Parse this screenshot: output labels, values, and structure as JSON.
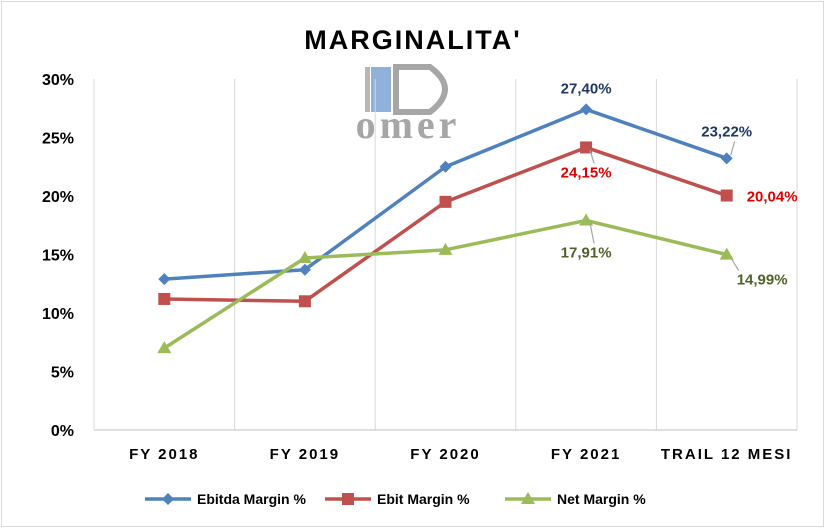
{
  "chart_data": {
    "type": "line",
    "title": "MARGINALITA'",
    "categories": [
      "FY 2018",
      "FY 2019",
      "FY 2020",
      "FY 2021",
      "TRAIL 12 MESI"
    ],
    "ylim": [
      0,
      30
    ],
    "yticks": [
      "0%",
      "5%",
      "10%",
      "15%",
      "20%",
      "25%",
      "30%"
    ],
    "grid": "vertical",
    "legend_position": "bottom",
    "watermark": {
      "text": "omer"
    },
    "series": [
      {
        "name": "Ebitda Margin %",
        "color": "#4f81bd",
        "marker": "diamond",
        "values": [
          12.9,
          13.7,
          22.5,
          27.4,
          23.22
        ],
        "labels": [
          null,
          null,
          null,
          "27,40%",
          "23,22%"
        ],
        "label_color": "#1f3864"
      },
      {
        "name": "Ebit Margin %",
        "color": "#c0504d",
        "marker": "square",
        "values": [
          11.2,
          11.0,
          19.5,
          24.15,
          20.04
        ],
        "labels": [
          null,
          null,
          null,
          "24,15%",
          "20,04%"
        ],
        "label_color": "#e00000"
      },
      {
        "name": "Net Margin %",
        "color": "#9bbb59",
        "marker": "triangle",
        "values": [
          7.0,
          14.7,
          15.4,
          17.91,
          14.99
        ],
        "labels": [
          null,
          null,
          null,
          "17,91%",
          "14,99%"
        ],
        "label_color": "#4f6228"
      }
    ]
  }
}
